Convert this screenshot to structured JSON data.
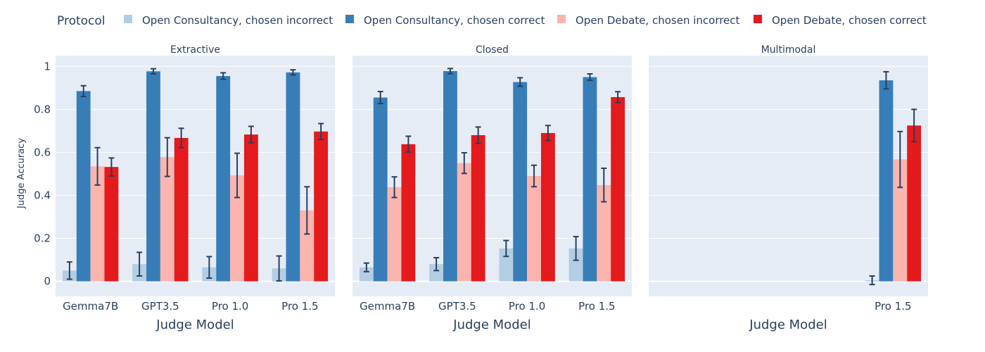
{
  "chart_data": {
    "type": "bar",
    "legend": {
      "title": "Protocol",
      "placement": "top"
    },
    "series": [
      {
        "name": "Open Consultancy, chosen incorrect",
        "color": "#b3cde3"
      },
      {
        "name": "Open Consultancy, chosen correct",
        "color": "#377eb8"
      },
      {
        "name": "Open Debate, chosen incorrect",
        "color": "#fbb4ae"
      },
      {
        "name": "Open Debate, chosen correct",
        "color": "#e41a1c"
      }
    ],
    "ylabel": "Judge Accuracy",
    "xlabel": "Judge Model",
    "ylim": [
      -0.07,
      1.05
    ],
    "yticks": [
      0,
      0.2,
      0.4,
      0.6,
      0.8,
      1
    ],
    "yticklabels": [
      "0",
      "0.2",
      "0.4",
      "0.6",
      "0.8",
      "1"
    ],
    "panels": [
      {
        "title": "Extractive",
        "categories": [
          "Gemma7B",
          "GPT3.5",
          "Pro 1.0",
          "Pro 1.5"
        ],
        "values": [
          [
            0.05,
            0.08,
            0.065,
            0.06
          ],
          [
            0.885,
            0.977,
            0.955,
            0.972
          ],
          [
            0.535,
            0.578,
            0.493,
            0.33
          ],
          [
            0.532,
            0.667,
            0.683,
            0.697
          ]
        ],
        "errors": [
          [
            0.04,
            0.055,
            0.05,
            0.058
          ],
          [
            0.025,
            0.012,
            0.015,
            0.012
          ],
          [
            0.087,
            0.09,
            0.103,
            0.11
          ],
          [
            0.042,
            0.045,
            0.038,
            0.037
          ]
        ]
      },
      {
        "title": "Closed",
        "categories": [
          "Gemma7B",
          "GPT3.5",
          "Pro 1.0",
          "Pro 1.5"
        ],
        "values": [
          [
            0.065,
            0.08,
            0.153,
            0.153
          ],
          [
            0.855,
            0.978,
            0.927,
            0.95
          ],
          [
            0.438,
            0.55,
            0.49,
            0.448
          ],
          [
            0.638,
            0.68,
            0.69,
            0.857
          ]
        ],
        "errors": [
          [
            0.02,
            0.03,
            0.037,
            0.055
          ],
          [
            0.028,
            0.012,
            0.02,
            0.015
          ],
          [
            0.048,
            0.048,
            0.05,
            0.078
          ],
          [
            0.037,
            0.038,
            0.035,
            0.025
          ]
        ]
      },
      {
        "title": "Multimodal",
        "categories": [
          "Pro 1.5"
        ],
        "values": [
          [
            0.005
          ],
          [
            0.935
          ],
          [
            0.567
          ],
          [
            0.725
          ]
        ],
        "errors": [
          [
            0.02
          ],
          [
            0.04
          ],
          [
            0.13
          ],
          [
            0.075
          ]
        ]
      }
    ]
  }
}
